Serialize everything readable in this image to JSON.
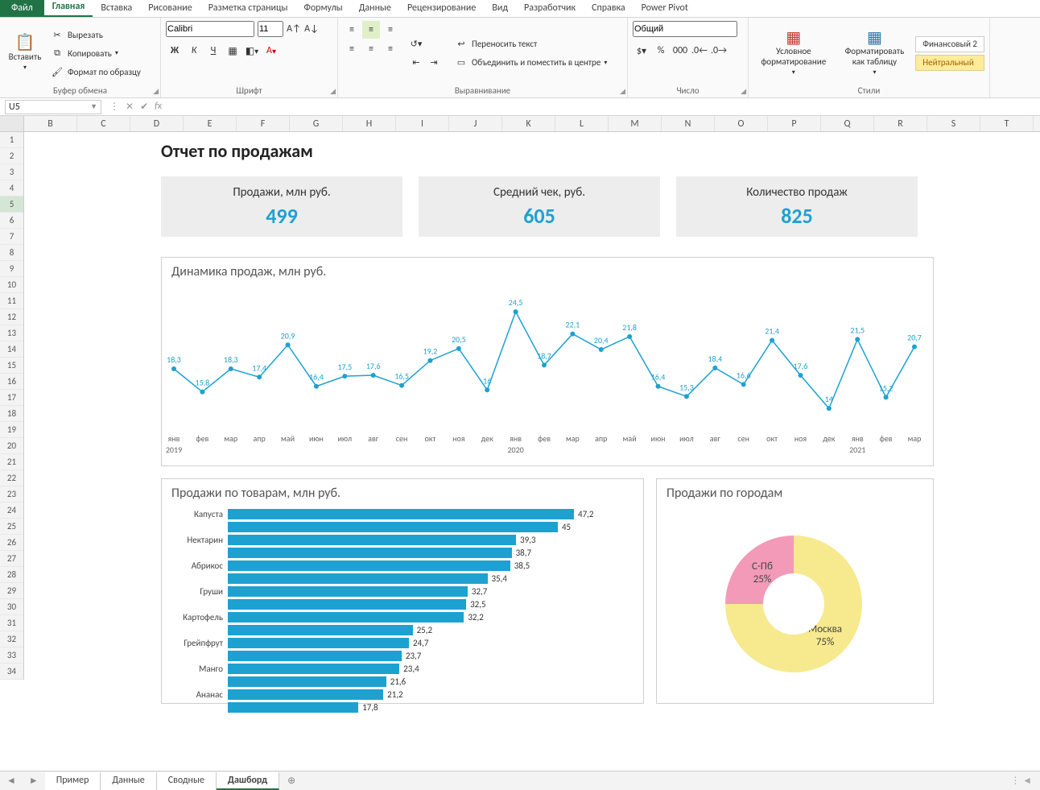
{
  "app": {
    "menus": [
      "Файл",
      "Главная",
      "Вставка",
      "Рисование",
      "Разметка страницы",
      "Формулы",
      "Данные",
      "Рецензирование",
      "Вид",
      "Разработчик",
      "Справка",
      "Power Pivot"
    ],
    "active_menu": 1,
    "clipboard": {
      "paste": "Вставить",
      "cut": "Вырезать",
      "copy": "Копировать",
      "format_painter": "Формат по образцу",
      "group": "Буфер обмена"
    },
    "font": {
      "name": "Calibri",
      "size": "11",
      "group": "Шрифт",
      "bold": "Ж",
      "italic": "К",
      "underline": "Ч"
    },
    "alignment": {
      "wrap": "Переносить текст",
      "merge": "Объединить и поместить в центре",
      "group": "Выравнивание"
    },
    "number": {
      "format": "Общий",
      "group": "Число"
    },
    "styles": {
      "conditional": "Условное форматирование",
      "as_table": "Форматировать как таблицу",
      "style1": "Финансовый 2",
      "style2": "Нейтральный",
      "group": "Стили"
    },
    "namebox": "U5",
    "formula": ""
  },
  "columns": [
    "B",
    "C",
    "D",
    "E",
    "F",
    "G",
    "H",
    "I",
    "J",
    "K",
    "L",
    "M",
    "N",
    "O",
    "P",
    "Q",
    "R",
    "S",
    "T"
  ],
  "row_count": 34,
  "selected_row": 5,
  "dashboard": {
    "title": "Отчет по продажам",
    "accent_color": "#1da1d1",
    "cards": [
      {
        "label": "Продажи, млн руб.",
        "value": "499"
      },
      {
        "label": "Средний чек, руб.",
        "value": "605"
      },
      {
        "label": "Количество продаж",
        "value": "825"
      }
    ],
    "line_chart": {
      "title": "Динамика продаж, млн руб.",
      "color": "#1da1d1",
      "marker_color": "#1da1d1",
      "points": [
        {
          "v": 18.3,
          "m": "янв",
          "y": "2019"
        },
        {
          "v": 15.8,
          "m": "фев"
        },
        {
          "v": 18.3,
          "m": "мар"
        },
        {
          "v": 17.4,
          "m": "апр"
        },
        {
          "v": 20.9,
          "m": "май"
        },
        {
          "v": 16.4,
          "m": "июн"
        },
        {
          "v": 17.5,
          "m": "июл"
        },
        {
          "v": 17.6,
          "m": "авг"
        },
        {
          "v": 16.5,
          "m": "сен"
        },
        {
          "v": 19.2,
          "m": "окт"
        },
        {
          "v": 20.5,
          "m": "ноя"
        },
        {
          "v": 16.0,
          "m": "дек"
        },
        {
          "v": 24.5,
          "m": "янв",
          "y": "2020"
        },
        {
          "v": 18.7,
          "m": "фев"
        },
        {
          "v": 22.1,
          "m": "мар"
        },
        {
          "v": 20.4,
          "m": "апр"
        },
        {
          "v": 21.8,
          "m": "май"
        },
        {
          "v": 16.4,
          "m": "июн"
        },
        {
          "v": 15.3,
          "m": "июл"
        },
        {
          "v": 18.4,
          "m": "авг"
        },
        {
          "v": 16.6,
          "m": "сен"
        },
        {
          "v": 21.4,
          "m": "окт"
        },
        {
          "v": 17.6,
          "m": "ноя"
        },
        {
          "v": 14.0,
          "m": "дек"
        },
        {
          "v": 21.5,
          "m": "янв",
          "y": "2021"
        },
        {
          "v": 15.2,
          "m": "фев"
        },
        {
          "v": 20.7,
          "m": "мар"
        }
      ],
      "ymin": 12,
      "ymax": 26
    },
    "bar_chart": {
      "title": "Продажи по товарам, млн руб.",
      "color": "#1da1d1",
      "max": 47.2,
      "labels_shown": [
        "Капуста",
        "",
        "Нектарин",
        "",
        "Абрикос",
        "",
        "Груши",
        "",
        "Картофель",
        "",
        "Грейпфрут",
        "",
        "Манго",
        "",
        "Ананас",
        ""
      ],
      "values": [
        47.2,
        45.0,
        39.3,
        38.7,
        38.5,
        35.4,
        32.7,
        32.5,
        32.2,
        25.2,
        24.7,
        23.7,
        23.4,
        21.6,
        21.2,
        17.8
      ]
    },
    "donut_chart": {
      "title": "Продажи по городам",
      "slices": [
        {
          "label": "Москва",
          "pct": 75,
          "sub": "75%",
          "color": "#f7e98e"
        },
        {
          "label": "С-Пб",
          "pct": 25,
          "sub": "25%",
          "color": "#f39ab8"
        }
      ],
      "hole_color": "#ffffff"
    }
  },
  "sheets": {
    "tabs": [
      "Пример",
      "Данные",
      "Сводные",
      "Дашборд"
    ],
    "active": 3
  }
}
